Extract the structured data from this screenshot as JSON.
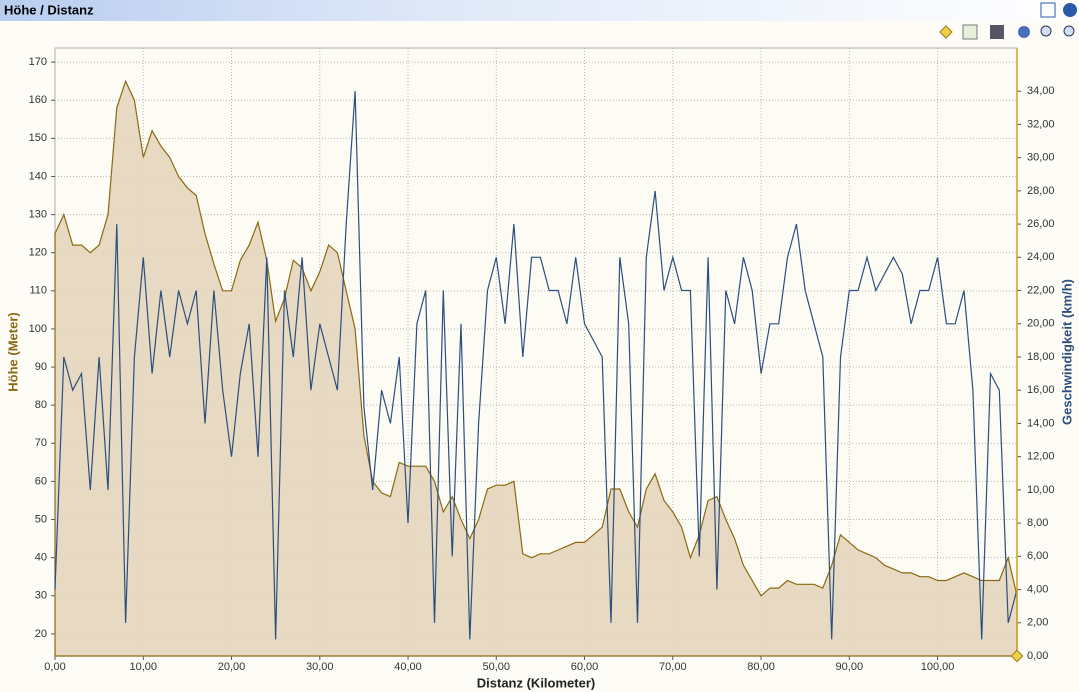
{
  "chart_data": {
    "type": "line",
    "title": "Höhe / Distanz",
    "xlabel": "Distanz (Kilometer)",
    "ylabel": "Höhe (Meter)",
    "y2label": "Geschwindigkeit (km/h)",
    "x": [
      0,
      1,
      2,
      3,
      4,
      5,
      6,
      7,
      8,
      9,
      10,
      11,
      12,
      13,
      14,
      15,
      16,
      17,
      18,
      19,
      20,
      21,
      22,
      23,
      24,
      25,
      26,
      27,
      28,
      29,
      30,
      31,
      32,
      33,
      34,
      35,
      36,
      37,
      38,
      39,
      40,
      41,
      42,
      43,
      44,
      45,
      46,
      47,
      48,
      49,
      50,
      51,
      52,
      53,
      54,
      55,
      56,
      57,
      58,
      59,
      60,
      61,
      62,
      63,
      64,
      65,
      66,
      67,
      68,
      69,
      70,
      71,
      72,
      73,
      74,
      75,
      76,
      77,
      78,
      79,
      80,
      81,
      82,
      83,
      84,
      85,
      86,
      87,
      88,
      89,
      90,
      91,
      92,
      93,
      94,
      95,
      96,
      97,
      98,
      99,
      100,
      101,
      102,
      103,
      104,
      105,
      106,
      107,
      108,
      109
    ],
    "series": [
      {
        "kind": "area",
        "color": "#8b6914",
        "fill": "#e6d5bd",
        "values": [
          125,
          130,
          122,
          122,
          120,
          122,
          130,
          158,
          165,
          160,
          145,
          152,
          148,
          145,
          140,
          137,
          135,
          125,
          117,
          110,
          110,
          118,
          122,
          128,
          118,
          102,
          108,
          118,
          116,
          110,
          115,
          122,
          120,
          110,
          100,
          72,
          60,
          57,
          56,
          65,
          64,
          64,
          64,
          60,
          52,
          56,
          50,
          45,
          50,
          58,
          59,
          59,
          60,
          41,
          40,
          41,
          41,
          42,
          43,
          44,
          44,
          46,
          48,
          58,
          58,
          52,
          48,
          58,
          62,
          55,
          52,
          48,
          40,
          46,
          55,
          56,
          50,
          45,
          38,
          34,
          30,
          32,
          32,
          34,
          33,
          33,
          33,
          32,
          38,
          46,
          44,
          42,
          41,
          40,
          38,
          37,
          36,
          36,
          35,
          35,
          34,
          34,
          35,
          36,
          35,
          34,
          34,
          34,
          40,
          30
        ]
      },
      {
        "kind": "line",
        "axis": "y2",
        "color": "#2b4f7e",
        "values": [
          4,
          18,
          16,
          17,
          10,
          18,
          10,
          26,
          2,
          18,
          24,
          17,
          22,
          18,
          22,
          20,
          22,
          14,
          22,
          16,
          12,
          17,
          20,
          12,
          24,
          1,
          22,
          18,
          24,
          16,
          20,
          18,
          16,
          26,
          34,
          15,
          10,
          16,
          14,
          18,
          8,
          20,
          22,
          2,
          22,
          6,
          20,
          1,
          14,
          22,
          24,
          20,
          26,
          18,
          24,
          24,
          22,
          22,
          20,
          24,
          20,
          19,
          18,
          2,
          24,
          20,
          2,
          24,
          28,
          22,
          24,
          22,
          22,
          6,
          24,
          4,
          22,
          20,
          24,
          22,
          17,
          20,
          20,
          24,
          26,
          22,
          20,
          18,
          1,
          18,
          22,
          22,
          24,
          22,
          23,
          24,
          23,
          20,
          22,
          22,
          24,
          20,
          20,
          22,
          16,
          1,
          17,
          16,
          2,
          4
        ]
      }
    ],
    "xlim": [
      0,
      109
    ],
    "xticks": [
      {
        "value": 0,
        "label": "0,00"
      },
      {
        "value": 10,
        "label": "10,00"
      },
      {
        "value": 20,
        "label": "20,00"
      },
      {
        "value": 30,
        "label": "30,00"
      },
      {
        "value": 40,
        "label": "40,00"
      },
      {
        "value": 50,
        "label": "50,00"
      },
      {
        "value": 60,
        "label": "60,00"
      },
      {
        "value": 70,
        "label": "70,00"
      },
      {
        "value": 80,
        "label": "80,00"
      },
      {
        "value": 90,
        "label": "90,00"
      },
      {
        "value": 100,
        "label": "100,00"
      }
    ],
    "ylim": [
      14.2,
      173.7
    ],
    "yticks": [
      20,
      30,
      40,
      50,
      60,
      70,
      80,
      90,
      100,
      110,
      120,
      130,
      140,
      150,
      160,
      170
    ],
    "y2lim": [
      0,
      36.6
    ],
    "y2ticks": [
      {
        "value": 0,
        "label": "0,00"
      },
      {
        "value": 2,
        "label": "2,00"
      },
      {
        "value": 4,
        "label": "4,00"
      },
      {
        "value": 6,
        "label": "6,00"
      },
      {
        "value": 8,
        "label": "8,00"
      },
      {
        "value": 10,
        "label": "10,00"
      },
      {
        "value": 12,
        "label": "12,00"
      },
      {
        "value": 14,
        "label": "14,00"
      },
      {
        "value": 16,
        "label": "16,00"
      },
      {
        "value": 18,
        "label": "18,00"
      },
      {
        "value": 20,
        "label": "20,00"
      },
      {
        "value": 22,
        "label": "22,00"
      },
      {
        "value": 24,
        "label": "24,00"
      },
      {
        "value": 26,
        "label": "26,00"
      },
      {
        "value": 28,
        "label": "28,00"
      },
      {
        "value": 30,
        "label": "30,00"
      },
      {
        "value": 32,
        "label": "32,00"
      },
      {
        "value": 34,
        "label": "34,00"
      }
    ],
    "grid": true
  }
}
